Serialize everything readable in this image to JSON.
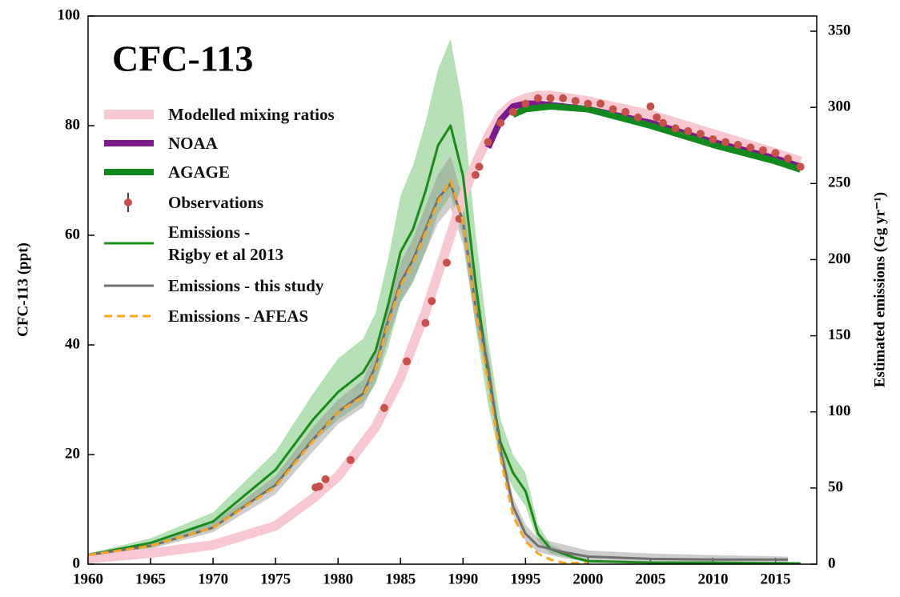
{
  "chart_data": {
    "type": "line",
    "title": "CFC-113",
    "ylabel": "CFC-113 (ppt)",
    "y2label": "Estimated emissions (Gg yr⁻¹)",
    "xlim": [
      1960,
      2018.3
    ],
    "xticks": [
      1960,
      1965,
      1970,
      1975,
      1980,
      1985,
      1990,
      1995,
      2000,
      2005,
      2010,
      2015
    ],
    "ylim": [
      0,
      100
    ],
    "yticks": [
      0,
      20,
      40,
      60,
      80,
      100
    ],
    "y2lim": [
      0,
      360
    ],
    "y2ticks": [
      0,
      50,
      100,
      150,
      200,
      250,
      300,
      350
    ],
    "series": [
      {
        "name": "Modelled mixing ratios",
        "color": "#f8c8d2",
        "linewidth": 12,
        "x": [
          1960,
          1965,
          1970,
          1975,
          1978,
          1980,
          1983,
          1985,
          1987,
          1989,
          1990,
          1991,
          1992,
          1993,
          1994,
          1995,
          1996,
          1997,
          2000,
          2005,
          2010,
          2015,
          2017
        ],
        "values": [
          1,
          2,
          3.5,
          7,
          12,
          16,
          25,
          34,
          46,
          60,
          67,
          73,
          78,
          82,
          84,
          85,
          85.5,
          85.5,
          84.5,
          82,
          78.5,
          75,
          73.5
        ]
      },
      {
        "name": "NOAA",
        "color": "#7b1a8c",
        "linewidth": 8,
        "x": [
          1992,
          1993,
          1994,
          1995,
          1996,
          2000,
          2005,
          2010,
          2015,
          2017
        ],
        "values": [
          76,
          81,
          83.5,
          84,
          84,
          83,
          80.5,
          77,
          74,
          72.5
        ]
      },
      {
        "name": "AGAGE",
        "color": "#138a1e",
        "linewidth": 8,
        "x": [
          1994,
          1995,
          1997,
          2000,
          2005,
          2010,
          2015,
          2017
        ],
        "values": [
          82,
          83,
          83.5,
          83,
          80,
          76.5,
          73.5,
          72
        ]
      },
      {
        "name": "Observations",
        "color": "#c8504a",
        "marker": "circle",
        "x": [
          1978.2,
          1978.5,
          1979,
          1981,
          1983.7,
          1985.5,
          1987,
          1987.5,
          1988.7,
          1989.7,
          1991,
          1991.3,
          1992,
          1993,
          1994,
          1995,
          1996,
          1997,
          1998,
          1999,
          2000,
          2001,
          2002,
          2003,
          2004,
          2005,
          2005.5,
          2006,
          2007,
          2008,
          2009,
          2010,
          2011,
          2012,
          2013,
          2014,
          2015,
          2016,
          2017
        ],
        "values": [
          14,
          14.2,
          15.5,
          19,
          28.5,
          37,
          44,
          48,
          55,
          63,
          71,
          72.5,
          77,
          80.5,
          82.5,
          84,
          85,
          85,
          85,
          84.5,
          84,
          84,
          83,
          82.5,
          81.5,
          83.5,
          81.5,
          80.5,
          79.5,
          79,
          78.5,
          77.5,
          77,
          76.5,
          76,
          75.5,
          75,
          74,
          72.5
        ]
      },
      {
        "name": "Emissions -\nRigby et al 2013",
        "color": "#1a8a1a",
        "band_color": "#5cb85c",
        "linewidth": 3,
        "axis": "y2",
        "x": [
          1960,
          1965,
          1970,
          1975,
          1978,
          1980,
          1982,
          1983,
          1984,
          1985,
          1986,
          1987,
          1988,
          1989,
          1990,
          1991,
          1992,
          1993,
          1994,
          1995,
          1996,
          1997,
          1998,
          1999,
          2000,
          2005,
          2010,
          2017
        ],
        "values": [
          6,
          14,
          28,
          62,
          95,
          113,
          126,
          140,
          170,
          205,
          220,
          245,
          275,
          288,
          255,
          185,
          125,
          80,
          60,
          48,
          20,
          10,
          7,
          4,
          2,
          1,
          1,
          0.5
        ],
        "lower": [
          5,
          11,
          23,
          52,
          80,
          95,
          106,
          118,
          142,
          172,
          185,
          205,
          230,
          242,
          215,
          156,
          105,
          67,
          50,
          38,
          15,
          7,
          5,
          3,
          1,
          0.5,
          0.5,
          0.2
        ],
        "upper": [
          7,
          17,
          34,
          74,
          112,
          135,
          148,
          165,
          200,
          242,
          262,
          290,
          325,
          345,
          300,
          218,
          148,
          95,
          72,
          60,
          26,
          13,
          9,
          6,
          3,
          2,
          2,
          1
        ]
      },
      {
        "name": "Emissions - this study",
        "color": "#707070",
        "band_color": "#909090",
        "linewidth": 3,
        "axis": "y2",
        "x": [
          1960,
          1965,
          1970,
          1975,
          1978,
          1980,
          1982,
          1983,
          1984,
          1985,
          1986,
          1987,
          1988,
          1989,
          1990,
          1991,
          1992,
          1993,
          1994,
          1995,
          1996,
          1997,
          1998,
          2000,
          2005,
          2010,
          2016
        ],
        "values": [
          6,
          12,
          24,
          52,
          82,
          100,
          112,
          130,
          160,
          185,
          200,
          220,
          240,
          250,
          225,
          170,
          130,
          75,
          38,
          20,
          12,
          10,
          8,
          5,
          3.5,
          3,
          3
        ],
        "lower": [
          5,
          10,
          21,
          46,
          74,
          92,
          103,
          120,
          148,
          172,
          186,
          205,
          224,
          234,
          210,
          158,
          120,
          68,
          33,
          15,
          8,
          6,
          4,
          2,
          1,
          0.5,
          0.5
        ],
        "upper": [
          7,
          14,
          27,
          58,
          90,
          108,
          121,
          140,
          172,
          198,
          214,
          235,
          256,
          268,
          240,
          182,
          140,
          82,
          44,
          26,
          17,
          15,
          13,
          9,
          7,
          6,
          5
        ]
      },
      {
        "name": "Emissions - AFEAS",
        "color": "#f5a623",
        "linewidth": 3,
        "dash": "10 6",
        "axis": "y2",
        "x": [
          1960,
          1965,
          1970,
          1975,
          1978,
          1980,
          1982,
          1983,
          1984,
          1985,
          1986,
          1987,
          1988,
          1989,
          1990,
          1991,
          1992,
          1993,
          1994,
          1995,
          1996,
          1997,
          1998,
          2000
        ],
        "values": [
          6,
          12,
          24,
          51,
          81,
          100,
          110,
          128,
          158,
          183,
          198,
          218,
          238,
          252,
          225,
          168,
          120,
          70,
          32,
          15,
          7,
          3,
          1,
          0.5
        ]
      }
    ]
  }
}
